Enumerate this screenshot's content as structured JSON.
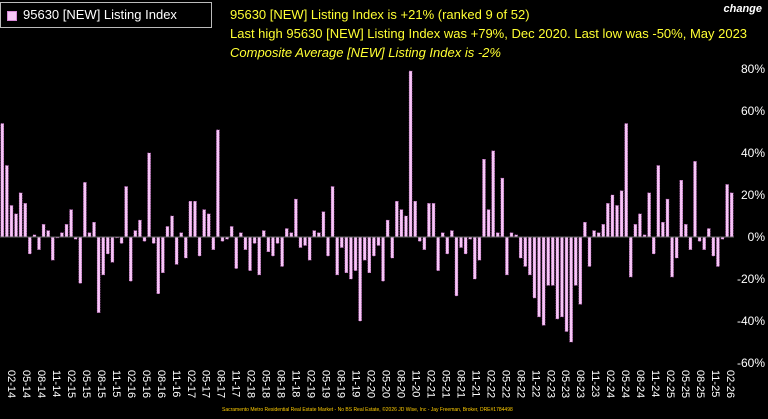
{
  "legend": {
    "label": "95630 [NEW] Listing Index"
  },
  "headline": {
    "line1": "95630 [NEW] Listing Index is +21% (ranked 9 of 52)",
    "line2": "Last high 95630 [NEW] Listing Index was +79%, Dec 2020. Last low was -50%, May 2023",
    "line3": "Composite Average [NEW] Listing Index is -2%"
  },
  "axis_title": "change",
  "footer": "Sacramento Metro Residential Real Estate Market - No BS Real Estate, ©2026 JD Wise, Inc - Jay Freeman, Broker, DRE#1784498",
  "colors": {
    "bar_fill": "#f7c7f7",
    "bar_stroke": "#d070d0",
    "text_yellow": "#ffff33",
    "axis_text": "#ffffff"
  },
  "chart_data": {
    "type": "bar",
    "title": "95630 [NEW] Listing Index",
    "ylabel": "change",
    "ylim": [
      -60,
      80
    ],
    "yticks": [
      "80%",
      "60%",
      "40%",
      "20%",
      "0%",
      "-20%",
      "-40%",
      "-60%"
    ],
    "ytick_values": [
      80,
      60,
      40,
      20,
      0,
      -20,
      -40,
      -60
    ],
    "xtick_labels": [
      "02-14",
      "05-14",
      "08-14",
      "11-14",
      "02-15",
      "05-15",
      "08-15",
      "11-15",
      "02-16",
      "05-16",
      "08-16",
      "11-16",
      "02-17",
      "05-17",
      "08-17",
      "11-17",
      "02-18",
      "05-18",
      "08-18",
      "11-18",
      "02-19",
      "05-19",
      "08-19",
      "11-19",
      "02-20",
      "05-20",
      "08-20",
      "11-20",
      "02-21",
      "05-21",
      "08-21",
      "11-21",
      "02-22",
      "05-22",
      "08-22",
      "11-22",
      "02-23",
      "05-23",
      "08-23",
      "11-23",
      "02-24",
      "05-24",
      "08-24",
      "11-24",
      "02-25",
      "05-25",
      "08-25",
      "11-25",
      "02-26"
    ],
    "values": [
      54,
      34,
      15,
      11,
      21,
      16,
      -8,
      1,
      -6,
      6,
      3,
      -11,
      0,
      2,
      6,
      13,
      -1,
      -22,
      26,
      2,
      7,
      -36,
      -18,
      -8,
      -12,
      0,
      -3,
      24,
      -21,
      3,
      8,
      -2,
      40,
      -3,
      -27,
      -17,
      5,
      10,
      -13,
      2,
      -10,
      17,
      17,
      -9,
      13,
      11,
      -6,
      51,
      -2,
      -1,
      5,
      -15,
      2,
      -6,
      -16,
      -3,
      -18,
      3,
      -7,
      -9,
      -3,
      -14,
      4,
      2,
      18,
      -5,
      -4,
      -11,
      3,
      2,
      12,
      -9,
      24,
      -18,
      -5,
      -17,
      -20,
      -16,
      -40,
      -11,
      -17,
      -9,
      -4,
      -21,
      8,
      -10,
      17,
      13,
      10,
      79,
      17,
      -2,
      -6,
      16,
      16,
      -16,
      2,
      -8,
      3,
      -28,
      -5,
      -8,
      -1,
      -20,
      -11,
      37,
      13,
      41,
      2,
      28,
      -18,
      2,
      1,
      -10,
      -14,
      -18,
      -29,
      -38,
      -42,
      -23,
      -23,
      -39,
      -38,
      -45,
      -50,
      -23,
      -32,
      7,
      -14,
      3,
      2,
      6,
      16,
      20,
      15,
      22,
      54,
      -19,
      6,
      11,
      1,
      21,
      -8,
      34,
      7,
      18,
      -19,
      -10,
      27,
      6,
      -6,
      36,
      -2,
      -6,
      4,
      -9,
      -14,
      -1,
      25,
      21
    ]
  }
}
